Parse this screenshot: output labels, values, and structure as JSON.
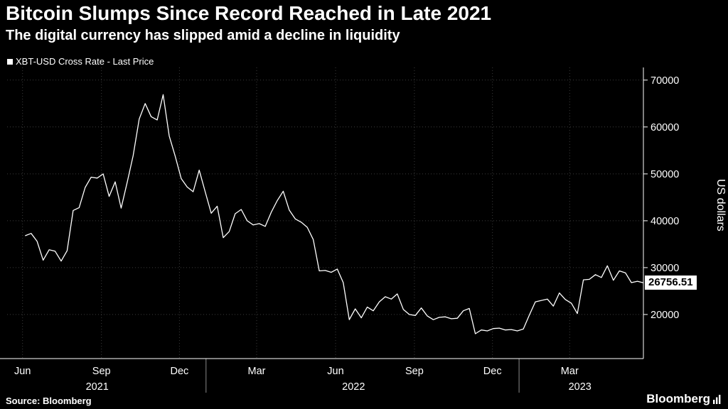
{
  "header": {
    "title": "Bitcoin Slumps Since Record Reached in Late 2021",
    "subtitle": "The digital currency has slipped amid a decline in liquidity"
  },
  "legend": {
    "series_label": "XBT-USD Cross Rate - Last Price"
  },
  "chart_data": {
    "type": "line",
    "title": "Bitcoin Slumps Since Record Reached in Late 2021",
    "subtitle": "The digital currency has slipped amid a decline in liquidity",
    "series_name": "XBT-USD Cross Rate - Last Price",
    "ylabel": "US dollars",
    "xlabel": "",
    "x_unit": "days since 2021-06-01, weekly samples",
    "x_start_day": 3,
    "x_step_days": 7,
    "values": [
      36800,
      37300,
      35600,
      31600,
      33800,
      33500,
      31400,
      33600,
      42200,
      42800,
      47100,
      49300,
      49100,
      50000,
      45200,
      48300,
      42700,
      48200,
      53900,
      61700,
      65000,
      62200,
      61500,
      66900,
      58100,
      53800,
      49000,
      47200,
      46200,
      50800,
      46200,
      41600,
      43100,
      36400,
      37700,
      41500,
      42400,
      40000,
      39100,
      39400,
      38800,
      41800,
      44300,
      46300,
      42300,
      40400,
      39700,
      38600,
      36000,
      29300,
      29400,
      29000,
      29700,
      26800,
      18900,
      21200,
      19300,
      21600,
      20800,
      22700,
      23800,
      23300,
      24400,
      21100,
      20000,
      19800,
      21400,
      19700,
      18900,
      19400,
      19500,
      19100,
      19200,
      20800,
      21300,
      15900,
      16700,
      16500,
      17000,
      17100,
      16700,
      16800,
      16500,
      16900,
      19900,
      22700,
      23000,
      23300,
      21800,
      24600,
      23200,
      22400,
      20200,
      27400,
      27500,
      28500,
      27900,
      30400,
      27300,
      29300,
      28900,
      26800,
      27100,
      26756.51
    ],
    "last_price": 26756.51,
    "last_price_label": "26756.51",
    "ylim": [
      10600,
      72700
    ],
    "xlim_days": [
      -18,
      724
    ],
    "y_ticks": [
      20000,
      30000,
      40000,
      50000,
      60000,
      70000
    ],
    "x_ticks": [
      {
        "day": 0,
        "label": "Jun"
      },
      {
        "day": 92,
        "label": "Sep"
      },
      {
        "day": 183,
        "label": "Dec"
      },
      {
        "day": 273,
        "label": "Mar"
      },
      {
        "day": 365,
        "label": "Jun"
      },
      {
        "day": 457,
        "label": "Sep"
      },
      {
        "day": 548,
        "label": "Dec"
      },
      {
        "day": 638,
        "label": "Mar"
      }
    ],
    "year_labels": [
      {
        "label": "2021",
        "center_day": 87
      },
      {
        "label": "2022",
        "center_day": 386
      },
      {
        "label": "2023",
        "center_day": 650
      }
    ],
    "year_dividers_day": [
      214,
      579
    ],
    "grid": true,
    "legend_position": "top-left",
    "line_color": "#ffffff",
    "grid_color": "#3d3d3d",
    "axis_color": "#ffffff",
    "background": "#000000"
  },
  "footer": {
    "source": "Source: Bloomberg",
    "brand": "Bloomberg"
  }
}
